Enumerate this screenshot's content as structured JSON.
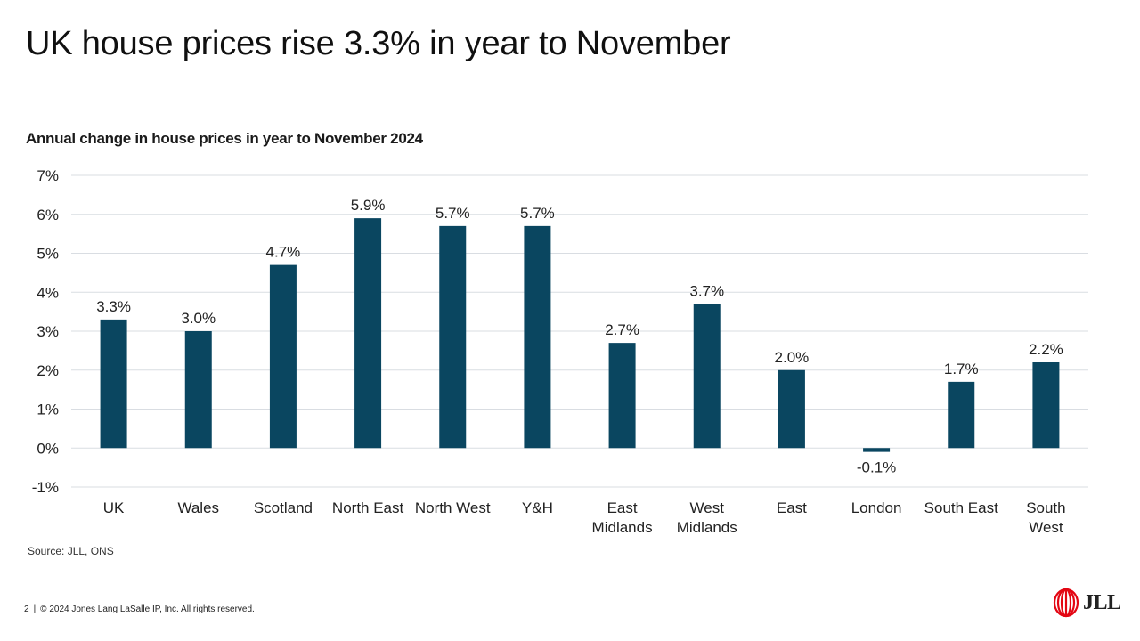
{
  "slide": {
    "title": "UK house prices rise 3.3% in year to November"
  },
  "chart_title": "Annual change in house prices in year to November 2024",
  "chart_data": {
    "type": "bar",
    "categories": [
      [
        "UK"
      ],
      [
        "Wales"
      ],
      [
        "Scotland"
      ],
      [
        "North East"
      ],
      [
        "North West"
      ],
      [
        "Y&H"
      ],
      [
        "East",
        "Midlands"
      ],
      [
        "West",
        "Midlands"
      ],
      [
        "East"
      ],
      [
        "London"
      ],
      [
        "South East"
      ],
      [
        "South",
        "West"
      ]
    ],
    "values": [
      3.3,
      3.0,
      4.7,
      5.9,
      5.7,
      5.7,
      2.7,
      3.7,
      2.0,
      -0.1,
      1.7,
      2.2
    ],
    "data_labels": [
      "3.3%",
      "3.0%",
      "4.7%",
      "5.9%",
      "5.7%",
      "5.7%",
      "2.7%",
      "3.7%",
      "2.0%",
      "-0.1%",
      "1.7%",
      "2.2%"
    ],
    "ylim": [
      -1,
      7
    ],
    "yticks": [
      "-1%",
      "0%",
      "1%",
      "2%",
      "3%",
      "4%",
      "5%",
      "6%",
      "7%"
    ],
    "bar_color": "#0a4660",
    "grid": true,
    "legend": "none"
  },
  "source": "Source: JLL, ONS",
  "footer": {
    "page_number": "2",
    "separator": "|",
    "copyright": "© 2024 Jones Lang LaSalle IP, Inc. All rights reserved."
  },
  "logo": {
    "text": "JLL",
    "icon": "jll-flame-logo-icon",
    "color": "#e30613"
  }
}
